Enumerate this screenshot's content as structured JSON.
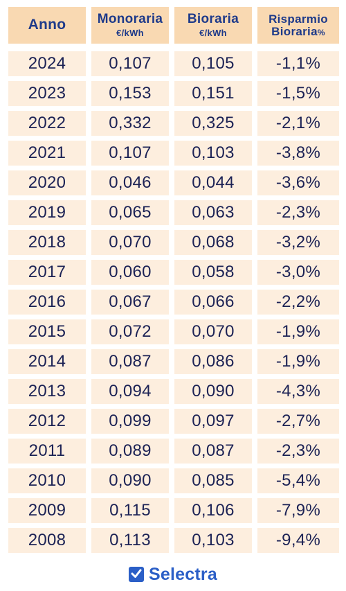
{
  "chart_data": {
    "type": "table",
    "columns": [
      {
        "name": "Anno",
        "unit": ""
      },
      {
        "name": "Monoraria",
        "unit": "€/kWh"
      },
      {
        "name": "Bioraria",
        "unit": "€/kWh"
      },
      {
        "name": "Risparmio Bioraria",
        "unit": "%"
      }
    ],
    "header": {
      "anno": "Anno",
      "monoraria": "Monoraria",
      "monoraria_unit": "€/kWh",
      "bioraria": "Bioraria",
      "bioraria_unit": "€/kWh",
      "risparmio_line1": "Risparmio",
      "risparmio_line2": "Bioraria",
      "risparmio_unit": "%"
    },
    "rows": [
      [
        "2024",
        "0,107",
        "0,105",
        "-1,1%"
      ],
      [
        "2023",
        "0,153",
        "0,151",
        "-1,5%"
      ],
      [
        "2022",
        "0,332",
        "0,325",
        "-2,1%"
      ],
      [
        "2021",
        "0,107",
        "0,103",
        "-3,8%"
      ],
      [
        "2020",
        "0,046",
        "0,044",
        "-3,6%"
      ],
      [
        "2019",
        "0,065",
        "0,063",
        "-2,3%"
      ],
      [
        "2018",
        "0,070",
        "0,068",
        "-3,2%"
      ],
      [
        "2017",
        "0,060",
        "0,058",
        "-3,0%"
      ],
      [
        "2016",
        "0,067",
        "0,066",
        "-2,2%"
      ],
      [
        "2015",
        "0,072",
        "0,070",
        "-1,9%"
      ],
      [
        "2014",
        "0,087",
        "0,086",
        "-1,9%"
      ],
      [
        "2013",
        "0,094",
        "0,090",
        "-4,3%"
      ],
      [
        "2012",
        "0,099",
        "0,097",
        "-2,7%"
      ],
      [
        "2011",
        "0,089",
        "0,087",
        "-2,3%"
      ],
      [
        "2010",
        "0,090",
        "0,085",
        "-5,4%"
      ],
      [
        "2009",
        "0,115",
        "0,106",
        "-7,9%"
      ],
      [
        "2008",
        "0,113",
        "0,103",
        "-9,4%"
      ]
    ]
  },
  "colors": {
    "header_bg": "#f9d9b2",
    "cell_bg": "#fdeede",
    "header_text": "#1e3a8a",
    "cell_text": "#1c2255",
    "brand": "#2b5fc7"
  },
  "brand": {
    "name": "Selectra",
    "icon": "check-box-icon"
  }
}
